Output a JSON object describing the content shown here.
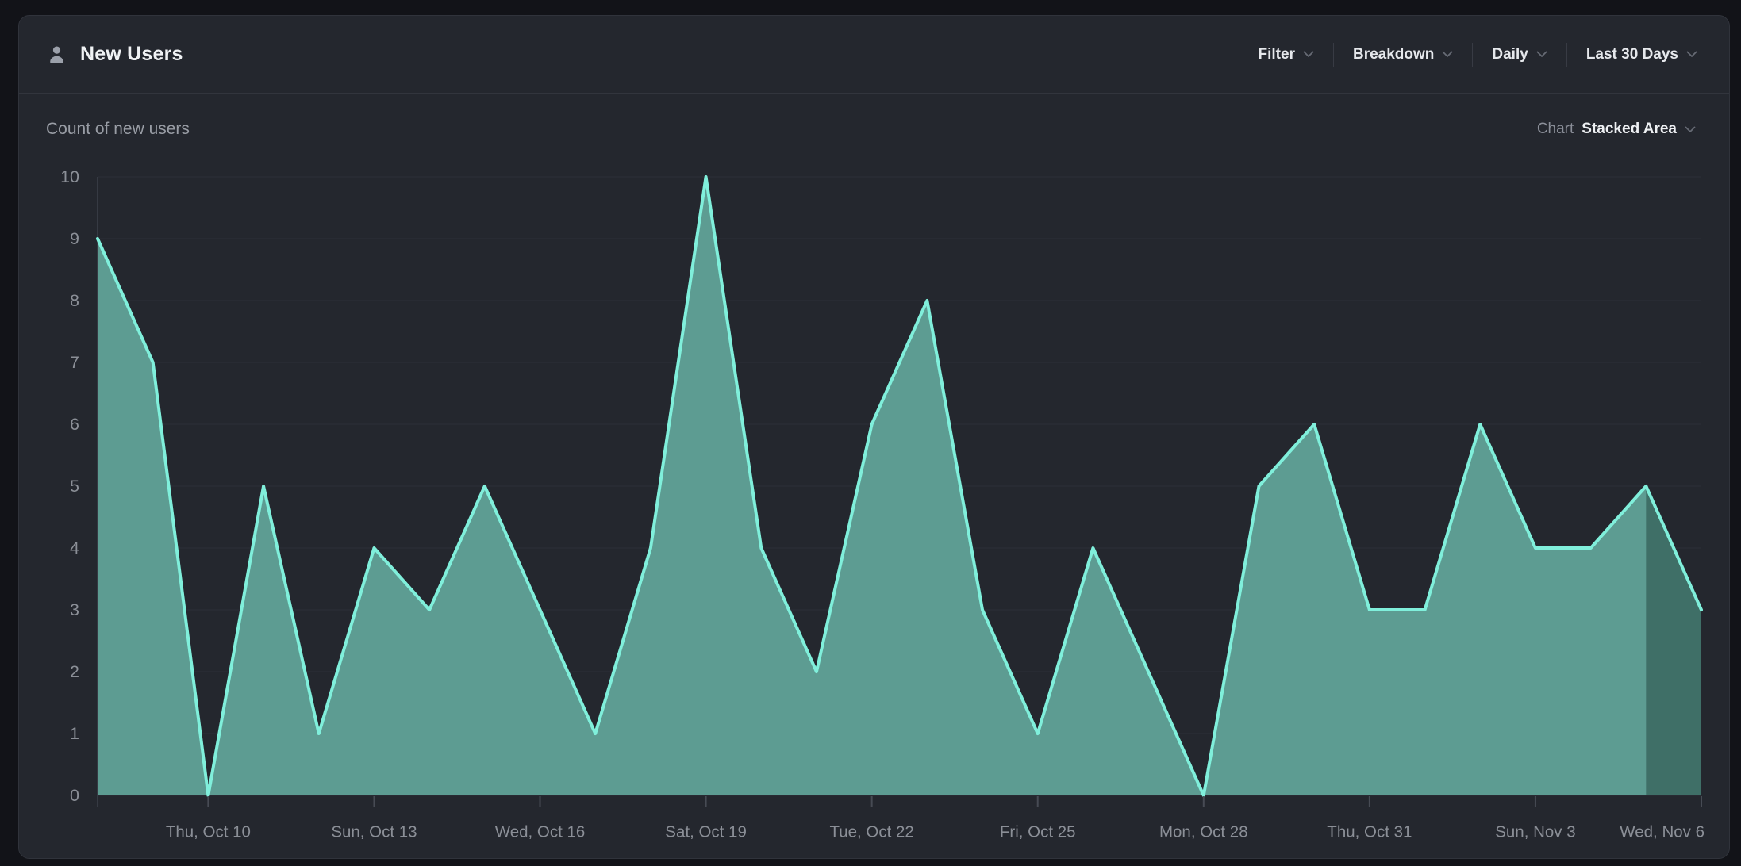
{
  "header": {
    "title": "New Users",
    "icon": "person-icon",
    "controls": [
      {
        "label": "Filter"
      },
      {
        "label": "Breakdown"
      },
      {
        "label": "Daily"
      },
      {
        "label": "Last 30 Days"
      }
    ]
  },
  "subheader": {
    "left_label": "Count of new users",
    "chart_label": "Chart",
    "chart_type": "Stacked Area"
  },
  "chart_data": {
    "type": "area",
    "title": "Count of new users",
    "x": [
      "Oct 8",
      "Oct 9",
      "Oct 10",
      "Oct 11",
      "Oct 12",
      "Oct 13",
      "Oct 14",
      "Oct 15",
      "Oct 16",
      "Oct 17",
      "Oct 18",
      "Oct 19",
      "Oct 20",
      "Oct 21",
      "Oct 22",
      "Oct 23",
      "Oct 24",
      "Oct 25",
      "Oct 26",
      "Oct 27",
      "Oct 28",
      "Oct 29",
      "Oct 30",
      "Oct 31",
      "Nov 1",
      "Nov 2",
      "Nov 3",
      "Nov 4",
      "Nov 5",
      "Nov 6"
    ],
    "values": [
      9,
      7,
      0,
      5,
      1,
      4,
      3,
      5,
      3,
      1,
      4,
      10,
      4,
      2,
      6,
      8,
      3,
      1,
      4,
      2,
      0,
      5,
      6,
      3,
      3,
      6,
      4,
      4,
      5,
      3
    ],
    "ylim": [
      0,
      10
    ],
    "y_ticks": [
      0,
      1,
      2,
      3,
      4,
      5,
      6,
      7,
      8,
      9,
      10
    ],
    "x_ticks": [
      {
        "index": 2,
        "label": "Thu, Oct 10"
      },
      {
        "index": 5,
        "label": "Sun, Oct 13"
      },
      {
        "index": 8,
        "label": "Wed, Oct 16"
      },
      {
        "index": 11,
        "label": "Sat, Oct 19"
      },
      {
        "index": 14,
        "label": "Tue, Oct 22"
      },
      {
        "index": 17,
        "label": "Fri, Oct 25"
      },
      {
        "index": 20,
        "label": "Mon, Oct 28"
      },
      {
        "index": 23,
        "label": "Thu, Oct 31"
      },
      {
        "index": 26,
        "label": "Sun, Nov 3"
      },
      {
        "index": 29,
        "label": "Wed, Nov 6"
      }
    ],
    "grid": true,
    "legend": "none",
    "incomplete_from_index": 28,
    "colors": {
      "fill": "#5d9c92",
      "incomplete_fill": "#3f6f67",
      "line": "#80efdb",
      "grid": "#2c2f38",
      "axis": "#474b54",
      "axis_line": "#363a43",
      "tick_text": "#8b8f97"
    }
  }
}
